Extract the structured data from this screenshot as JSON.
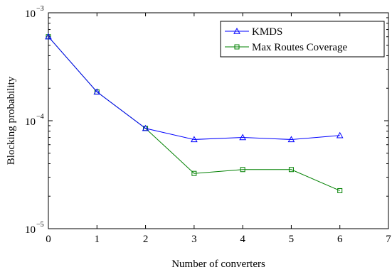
{
  "chart_data": {
    "type": "line",
    "title": "",
    "xlabel": "Number of converters",
    "ylabel": "Blocking probability",
    "xlim": [
      0,
      7
    ],
    "ylim": [
      1e-05,
      0.001
    ],
    "yscale": "log",
    "grid": false,
    "legend_position": "top-right",
    "x_ticks": [
      "0",
      "1",
      "2",
      "3",
      "4",
      "5",
      "6",
      "7"
    ],
    "y_ticks": [
      {
        "value": 0.001,
        "base": "10",
        "exp": "−3"
      },
      {
        "value": 0.0001,
        "base": "10",
        "exp": "−4"
      },
      {
        "value": 1e-05,
        "base": "10",
        "exp": "−5"
      }
    ],
    "x": [
      0,
      1,
      2,
      3,
      4,
      5,
      6
    ],
    "series": [
      {
        "name": "KMDS",
        "color": "#0000ff",
        "marker": "triangle",
        "values": [
          0.0006,
          0.000185,
          8.5e-05,
          6.7e-05,
          7e-05,
          6.7e-05,
          7.3e-05
        ]
      },
      {
        "name": "Max Routes Coverage",
        "color": "#008000",
        "marker": "square",
        "values": [
          0.0006,
          0.000185,
          8.5e-05,
          3.25e-05,
          3.53e-05,
          3.53e-05,
          2.25e-05
        ]
      }
    ]
  }
}
